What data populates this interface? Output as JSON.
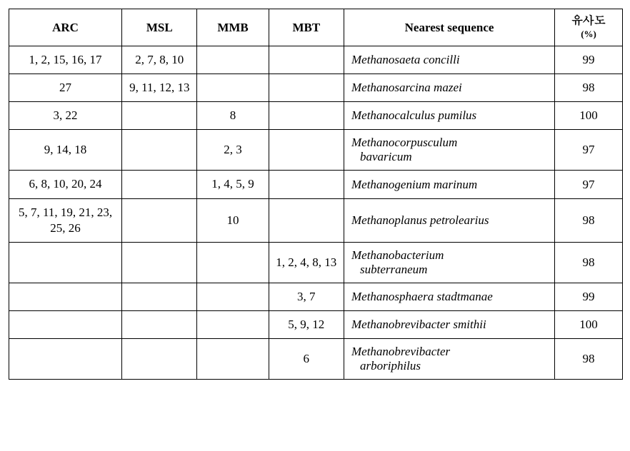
{
  "headers": {
    "arc": "ARC",
    "msl": "MSL",
    "mmb": "MMB",
    "mbt": "MBT",
    "nearest": "Nearest sequence",
    "similarity_top": "유사도",
    "similarity_bottom": "(%)"
  },
  "rows": [
    {
      "arc": "1, 2, 15, 16, 17",
      "msl": "2, 7, 8, 10",
      "mmb": "",
      "mbt": "",
      "seq_genus": "Methanosaeta concilli",
      "seq_species": "",
      "similarity": "99"
    },
    {
      "arc": "27",
      "msl": "9, 11, 12, 13",
      "mmb": "",
      "mbt": "",
      "seq_genus": "Methanosarcina mazei",
      "seq_species": "",
      "similarity": "98"
    },
    {
      "arc": "3, 22",
      "msl": "",
      "mmb": "8",
      "mbt": "",
      "seq_genus": "Methanocalculus pumilus",
      "seq_species": "",
      "similarity": "100"
    },
    {
      "arc": "9, 14, 18",
      "msl": "",
      "mmb": "2, 3",
      "mbt": "",
      "seq_genus": "Methanocorpusculum",
      "seq_species": "bavaricum",
      "similarity": "97"
    },
    {
      "arc": "6, 8, 10, 20, 24",
      "msl": "",
      "mmb": "1, 4, 5, 9",
      "mbt": "",
      "seq_genus": "Methanogenium marinum",
      "seq_species": "",
      "similarity": "97"
    },
    {
      "arc": "5, 7, 11, 19, 21, 23, 25, 26",
      "msl": "",
      "mmb": "10",
      "mbt": "",
      "seq_genus": "Methanoplanus petrolearius",
      "seq_species": "",
      "similarity": "98"
    },
    {
      "arc": "",
      "msl": "",
      "mmb": "",
      "mbt": "1, 2, 4, 8, 13",
      "seq_genus": "Methanobacterium",
      "seq_species": "subterraneum",
      "similarity": "98"
    },
    {
      "arc": "",
      "msl": "",
      "mmb": "",
      "mbt": "3, 7",
      "seq_genus": "Methanosphaera stadtmanae",
      "seq_species": "",
      "similarity": "99"
    },
    {
      "arc": "",
      "msl": "",
      "mmb": "",
      "mbt": "5, 9, 12",
      "seq_genus": "Methanobrevibacter smithii",
      "seq_species": "",
      "similarity": "100"
    },
    {
      "arc": "",
      "msl": "",
      "mmb": "",
      "mbt": "6",
      "seq_genus": "Methanobrevibacter",
      "seq_species": "arboriphilus",
      "similarity": "98"
    }
  ]
}
